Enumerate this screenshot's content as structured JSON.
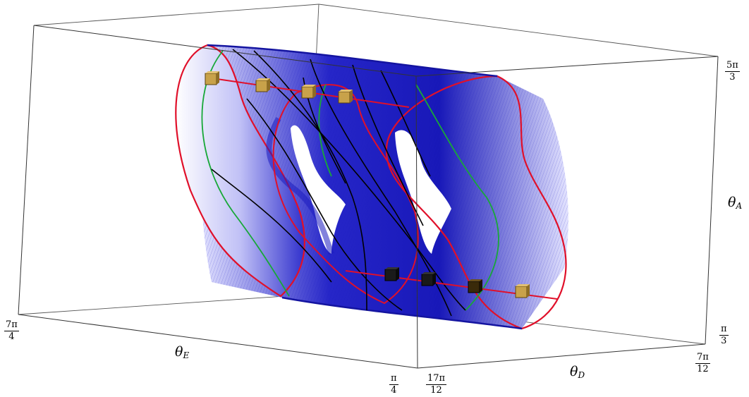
{
  "axes": {
    "theta_A": {
      "symbol": "θ",
      "subscript": "A",
      "tick_top": {
        "num": "5π",
        "den": "3"
      },
      "tick_bottom": {
        "num": "π",
        "den": "3"
      }
    },
    "theta_D": {
      "symbol": "θ",
      "subscript": "D",
      "tick_left": {
        "num": "17π",
        "den": "12"
      },
      "tick_right": {
        "num": "7π",
        "den": "12"
      }
    },
    "theta_E": {
      "symbol": "θ",
      "subscript": "E",
      "tick_left": {
        "num": "7π",
        "den": "4"
      },
      "tick_right": {
        "num": "π",
        "den": "4"
      }
    }
  },
  "colors": {
    "surface": "#1e1ec8",
    "surface_light": "#dcdcff",
    "boundary_curve": "#e0102a",
    "inner_curve": "#18a838",
    "wire_curve": "#000000",
    "marker": "#c8a24a",
    "box": "#444444"
  },
  "markers": {
    "count": 8,
    "shape": "cube"
  }
}
